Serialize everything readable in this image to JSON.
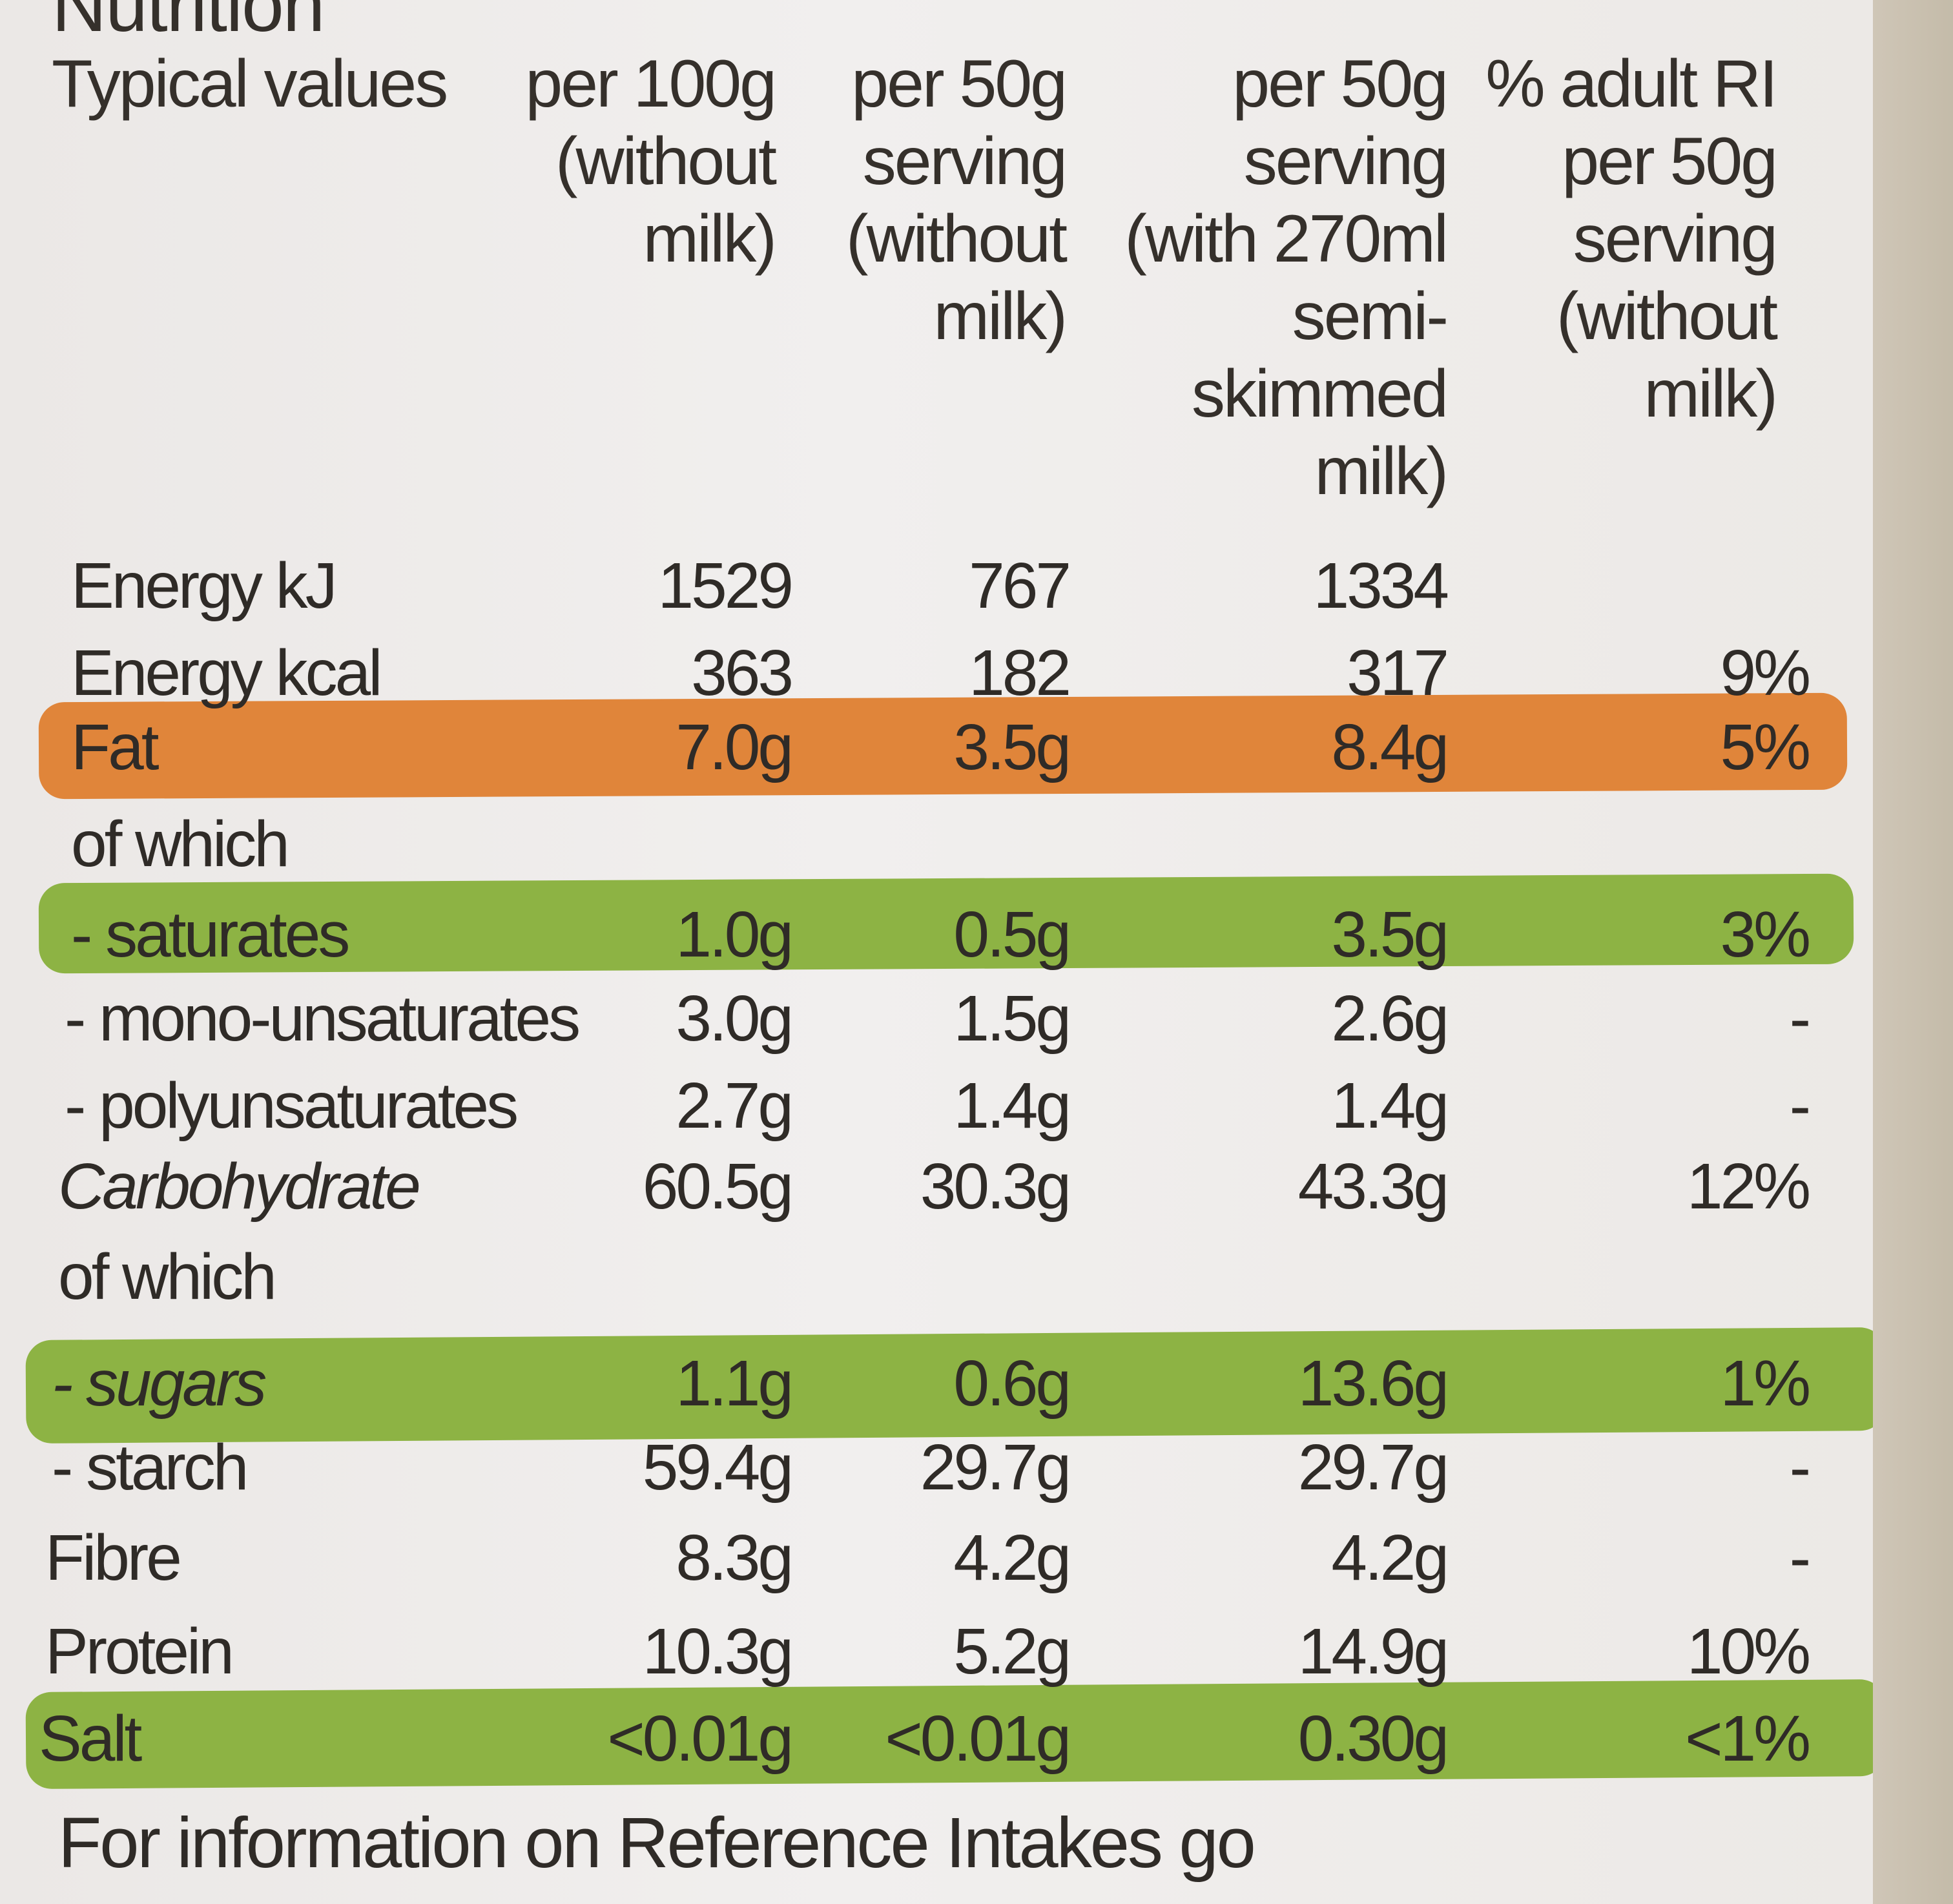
{
  "title": "Nutrition",
  "headers": {
    "typical": "Typical values",
    "col1": "per 100g\n(without\nmilk)",
    "col2": "per 50g\nserving\n(without\nmilk)",
    "col3": "per 50g\nserving\n(with 270ml\nsemi-\nskimmed\nmilk)",
    "col4": "% adult RI\nper 50g\nserving\n(without\nmilk)"
  },
  "rows": [
    {
      "name": "Energy kJ",
      "v1": "1529",
      "v2": "767",
      "v3": "1334",
      "v4": ""
    },
    {
      "name": "Energy kcal",
      "v1": "363",
      "v2": "182",
      "v3": "317",
      "v4": "9%"
    },
    {
      "name": "Fat",
      "v1": "7.0g",
      "v2": "3.5g",
      "v3": "8.4g",
      "v4": "5%"
    },
    {
      "name": "of which",
      "v1": "",
      "v2": "",
      "v3": "",
      "v4": ""
    },
    {
      "name": "- saturates",
      "v1": "1.0g",
      "v2": "0.5g",
      "v3": "3.5g",
      "v4": "3%"
    },
    {
      "name": "- mono-unsaturates",
      "v1": "3.0g",
      "v2": "1.5g",
      "v3": "2.6g",
      "v4": "-"
    },
    {
      "name": "- polyunsaturates",
      "v1": "2.7g",
      "v2": "1.4g",
      "v3": "1.4g",
      "v4": "-"
    },
    {
      "name": "Carbohydrate",
      "v1": "60.5g",
      "v2": "30.3g",
      "v3": "43.3g",
      "v4": "12%"
    },
    {
      "name": "of which",
      "v1": "",
      "v2": "",
      "v3": "",
      "v4": ""
    },
    {
      "name": "- sugars",
      "v1": "1.1g",
      "v2": "0.6g",
      "v3": "13.6g",
      "v4": "1%"
    },
    {
      "name": "- starch",
      "v1": "59.4g",
      "v2": "29.7g",
      "v3": "29.7g",
      "v4": "-"
    },
    {
      "name": "Fibre",
      "v1": "8.3g",
      "v2": "4.2g",
      "v3": "4.2g",
      "v4": "-"
    },
    {
      "name": "Protein",
      "v1": "10.3g",
      "v2": "5.2g",
      "v3": "14.9g",
      "v4": "10%"
    },
    {
      "name": "Salt",
      "v1": "<0.01g",
      "v2": "<0.01g",
      "v3": "0.30g",
      "v4": "<1%"
    }
  ],
  "footer": "For information on Reference Intakes go",
  "colors": {
    "fat_band": "#e0853a",
    "green_band": "#8db344"
  }
}
